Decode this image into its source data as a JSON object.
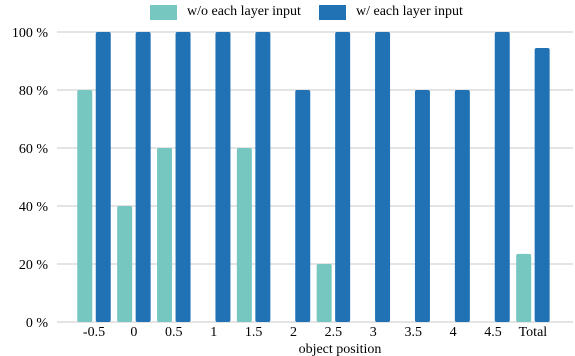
{
  "chart_data": {
    "type": "bar",
    "categories": [
      "-0.5",
      "0",
      "0.5",
      "1",
      "1.5",
      "2",
      "2.5",
      "3",
      "3.5",
      "4",
      "4.5",
      "Total"
    ],
    "series": [
      {
        "name": "w/o each layer input",
        "color": "#76c7c0",
        "values": [
          80,
          40,
          60,
          0,
          60,
          0,
          20,
          0,
          0,
          0,
          0,
          23.5
        ]
      },
      {
        "name": "w/ each layer input",
        "color": "#2171b5",
        "values": [
          100,
          100,
          100,
          100,
          100,
          80,
          100,
          100,
          80,
          80,
          100,
          94.5
        ]
      }
    ],
    "xlabel": "object position",
    "ylabel": "",
    "ylim": [
      0,
      100
    ],
    "yticks": [
      0,
      20,
      40,
      60,
      80,
      100
    ],
    "ytick_labels": [
      "0 %",
      "20 %",
      "40 %",
      "60 %",
      "80 %",
      "100 %"
    ],
    "grid": "horizontal",
    "legend_position": "top-center"
  }
}
